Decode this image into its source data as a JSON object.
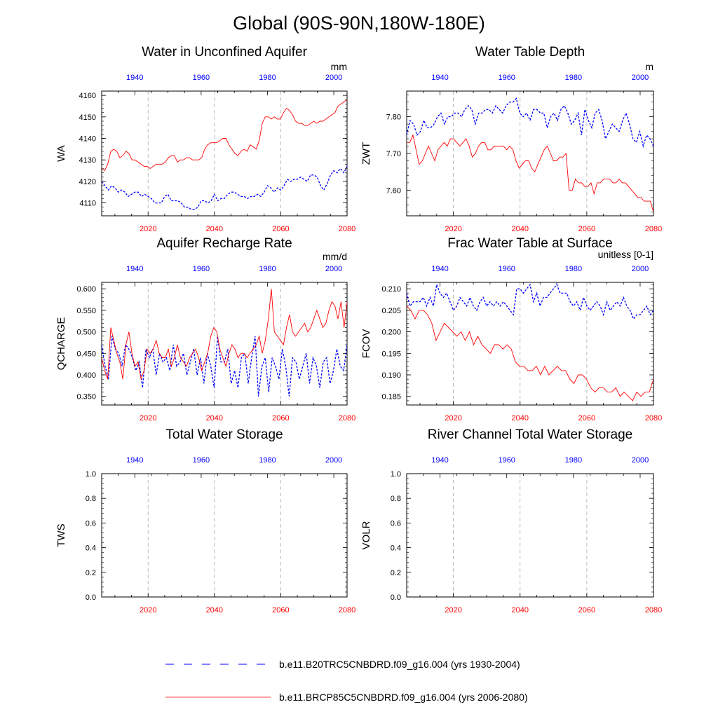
{
  "page_title": "Global (90S-90N,180W-180E)",
  "colors": {
    "historical": "#0000ff",
    "future": "#ff0000",
    "axis": "#000000",
    "gridline": "#aaaaaa"
  },
  "legend": {
    "historical_label": "b.e11.B20TRC5CNBDRD.f09_g16.004 (yrs 1930-2004)",
    "future_label": "b.e11.BRCP85C5CNBDRD.f09_g16.004 (yrs 2006-2080)"
  },
  "chart_data": [
    {
      "type": "line",
      "title": "Water in Unconfined Aquifer",
      "ylabel": "WA",
      "units": "mm",
      "ylim": [
        4104,
        4162
      ],
      "yticks": [
        4110,
        4120,
        4130,
        4140,
        4150,
        4160
      ],
      "ytick_labels": [
        "4110",
        "4120",
        "4130",
        "4140",
        "4150",
        "4160"
      ],
      "x_bottom": {
        "range": [
          2006,
          2080
        ],
        "ticks": [
          2020,
          2040,
          2060,
          2080
        ]
      },
      "x_top": {
        "range": [
          1930,
          2004
        ],
        "ticks": [
          1940,
          1960,
          1980,
          2000
        ]
      },
      "grid": "vertical dashed at bottom ticks",
      "series": [
        {
          "name": "b.e11.B20TRC5CNBDRD.f09_g16.004 (yrs 1930-2004)",
          "axis": "top",
          "x_start": 1930,
          "values": [
            4120,
            4118,
            4116,
            4118,
            4117,
            4115,
            4116,
            4115,
            4113,
            4114,
            4115,
            4115,
            4113,
            4114,
            4113,
            4112,
            4110,
            4110,
            4110,
            4113,
            4114,
            4111,
            4111,
            4111,
            4110,
            4108,
            4108,
            4107,
            4107,
            4108,
            4111,
            4111,
            4110,
            4111,
            4114,
            4111,
            4112,
            4112,
            4114,
            4115,
            4115,
            4114,
            4113,
            4113,
            4112,
            4113,
            4113,
            4114,
            4113,
            4115,
            4118,
            4117,
            4115,
            4117,
            4116,
            4118,
            4121,
            4120,
            4121,
            4121,
            4122,
            4121,
            4120,
            4123,
            4123,
            4122,
            4118,
            4116,
            4119,
            4123,
            4125,
            4124,
            4126,
            4124,
            4127
          ]
        },
        {
          "name": "b.e11.BRCP85C5CNBDRD.f09_g16.004 (yrs 2006-2080)",
          "axis": "bottom",
          "x_start": 2006,
          "values": [
            4126,
            4125,
            4128,
            4134,
            4135,
            4134,
            4131,
            4132,
            4134,
            4133,
            4130,
            4130,
            4129,
            4128,
            4127,
            4127,
            4126,
            4127,
            4128,
            4128,
            4128,
            4129,
            4131,
            4132,
            4132,
            4129,
            4130,
            4130,
            4131,
            4131,
            4130,
            4130,
            4130,
            4131,
            4135,
            4137,
            4138,
            4138,
            4138,
            4139,
            4140,
            4140,
            4137,
            4135,
            4133,
            4132,
            4134,
            4135,
            4134,
            4137,
            4136,
            4135,
            4139,
            4147,
            4150,
            4150,
            4149,
            4150,
            4149,
            4149,
            4152,
            4154,
            4153,
            4151,
            4148,
            4147,
            4147,
            4146,
            4146,
            4147,
            4148,
            4147,
            4148,
            4148,
            4149,
            4150,
            4151,
            4152,
            4155,
            4156,
            4157,
            4158
          ]
        }
      ]
    },
    {
      "type": "line",
      "title": "Water Table Depth",
      "ylabel": "ZWT",
      "units": "m",
      "ylim": [
        7.53,
        7.87
      ],
      "yticks": [
        7.6,
        7.7,
        7.8
      ],
      "ytick_labels": [
        "7.60",
        "7.70",
        "7.80"
      ],
      "x_bottom": {
        "range": [
          2006,
          2080
        ],
        "ticks": [
          2020,
          2040,
          2060,
          2080
        ]
      },
      "x_top": {
        "range": [
          1930,
          2004
        ],
        "ticks": [
          1940,
          1960,
          1980,
          2000
        ]
      },
      "grid": "vertical dashed at bottom ticks",
      "series": [
        {
          "name": "b.e11.B20TRC5CNBDRD.f09_g16.004 (yrs 1930-2004)",
          "axis": "top",
          "x_start": 1930,
          "values": [
            7.75,
            7.79,
            7.78,
            7.75,
            7.76,
            7.79,
            7.77,
            7.77,
            7.78,
            7.8,
            7.81,
            7.78,
            7.8,
            7.8,
            7.81,
            7.81,
            7.8,
            7.82,
            7.83,
            7.82,
            7.78,
            7.81,
            7.81,
            7.82,
            7.82,
            7.81,
            7.83,
            7.82,
            7.81,
            7.83,
            7.84,
            7.84,
            7.85,
            7.81,
            7.8,
            7.81,
            7.79,
            7.82,
            7.82,
            7.81,
            7.81,
            7.77,
            7.8,
            7.81,
            7.79,
            7.82,
            7.83,
            7.81,
            7.78,
            7.79,
            7.81,
            7.75,
            7.82,
            7.79,
            7.77,
            7.81,
            7.82,
            7.79,
            7.74,
            7.76,
            7.78,
            7.77,
            7.76,
            7.79,
            7.81,
            7.78,
            7.74,
            7.73,
            7.76,
            7.72,
            7.75,
            7.74,
            7.72
          ]
        },
        {
          "name": "b.e11.BRCP85C5CNBDRD.f09_g16.004 (yrs 2006-2080)",
          "axis": "bottom",
          "x_start": 2006,
          "values": [
            7.73,
            7.73,
            7.75,
            7.71,
            7.67,
            7.68,
            7.7,
            7.72,
            7.7,
            7.68,
            7.71,
            7.72,
            7.73,
            7.72,
            7.74,
            7.74,
            7.73,
            7.72,
            7.73,
            7.74,
            7.72,
            7.69,
            7.7,
            7.72,
            7.73,
            7.73,
            7.71,
            7.71,
            7.72,
            7.72,
            7.72,
            7.72,
            7.71,
            7.72,
            7.71,
            7.68,
            7.66,
            7.67,
            7.68,
            7.68,
            7.66,
            7.65,
            7.67,
            7.69,
            7.71,
            7.72,
            7.7,
            7.68,
            7.68,
            7.69,
            7.69,
            7.7,
            7.6,
            7.6,
            7.63,
            7.62,
            7.62,
            7.61,
            7.61,
            7.62,
            7.59,
            7.62,
            7.62,
            7.63,
            7.63,
            7.63,
            7.62,
            7.62,
            7.63,
            7.62,
            7.62,
            7.61,
            7.6,
            7.59,
            7.58,
            7.58,
            7.57,
            7.57,
            7.57,
            7.54
          ]
        }
      ]
    },
    {
      "type": "line",
      "title": "Aquifer Recharge Rate",
      "ylabel": "QCHARGE",
      "units": "mm/d",
      "ylim": [
        0.33,
        0.615
      ],
      "yticks": [
        0.35,
        0.4,
        0.45,
        0.5,
        0.55,
        0.6
      ],
      "ytick_labels": [
        "0.350",
        "0.400",
        "0.450",
        "0.500",
        "0.550",
        "0.600"
      ],
      "x_bottom": {
        "range": [
          2006,
          2080
        ],
        "ticks": [
          2020,
          2040,
          2060,
          2080
        ]
      },
      "x_top": {
        "range": [
          1930,
          2004
        ],
        "ticks": [
          1940,
          1960,
          1980,
          2000
        ]
      },
      "grid": "vertical dashed at bottom ticks",
      "series": [
        {
          "name": "b.e11.B20TRC5CNBDRD.f09_g16.004 (yrs 1930-2004)",
          "axis": "top",
          "x_start": 1930,
          "values": [
            0.47,
            0.42,
            0.39,
            0.49,
            0.46,
            0.45,
            0.42,
            0.47,
            0.46,
            0.44,
            0.41,
            0.43,
            0.37,
            0.46,
            0.44,
            0.46,
            0.4,
            0.45,
            0.43,
            0.44,
            0.41,
            0.47,
            0.42,
            0.43,
            0.45,
            0.4,
            0.43,
            0.46,
            0.4,
            0.44,
            0.38,
            0.45,
            0.42,
            0.37,
            0.49,
            0.43,
            0.43,
            0.46,
            0.38,
            0.41,
            0.37,
            0.44,
            0.45,
            0.38,
            0.44,
            0.49,
            0.35,
            0.42,
            0.44,
            0.36,
            0.44,
            0.42,
            0.39,
            0.46,
            0.42,
            0.35,
            0.44,
            0.43,
            0.39,
            0.42,
            0.45,
            0.38,
            0.44,
            0.42,
            0.37,
            0.43,
            0.44,
            0.38,
            0.41,
            0.46,
            0.42,
            0.41,
            0.47
          ]
        },
        {
          "name": "b.e11.BRCP85C5CNBDRD.f09_g16.004 (yrs 2006-2080)",
          "axis": "bottom",
          "x_start": 2006,
          "values": [
            0.44,
            0.41,
            0.39,
            0.51,
            0.48,
            0.45,
            0.43,
            0.39,
            0.47,
            0.5,
            0.45,
            0.42,
            0.43,
            0.39,
            0.41,
            0.46,
            0.45,
            0.46,
            0.48,
            0.45,
            0.44,
            0.44,
            0.46,
            0.42,
            0.44,
            0.47,
            0.44,
            0.43,
            0.42,
            0.44,
            0.45,
            0.46,
            0.44,
            0.41,
            0.43,
            0.45,
            0.49,
            0.51,
            0.5,
            0.46,
            0.44,
            0.42,
            0.45,
            0.47,
            0.46,
            0.44,
            0.45,
            0.45,
            0.44,
            0.45,
            0.46,
            0.47,
            0.49,
            0.45,
            0.48,
            0.53,
            0.6,
            0.5,
            0.49,
            0.48,
            0.47,
            0.51,
            0.54,
            0.5,
            0.49,
            0.5,
            0.51,
            0.52,
            0.5,
            0.51,
            0.53,
            0.55,
            0.53,
            0.51,
            0.52,
            0.55,
            0.57,
            0.56,
            0.53,
            0.57,
            0.51,
            0.57
          ]
        }
      ]
    },
    {
      "type": "line",
      "title": "Frac Water Table at Surface",
      "ylabel": "FCOV",
      "units": "unitless [0-1]",
      "ylim": [
        0.183,
        0.2115
      ],
      "yticks": [
        0.185,
        0.19,
        0.195,
        0.2,
        0.205,
        0.21
      ],
      "ytick_labels": [
        "0.185",
        "0.190",
        "0.195",
        "0.200",
        "0.205",
        "0.210"
      ],
      "x_bottom": {
        "range": [
          2006,
          2080
        ],
        "ticks": [
          2020,
          2040,
          2060,
          2080
        ]
      },
      "x_top": {
        "range": [
          1930,
          2004
        ],
        "ticks": [
          1940,
          1960,
          1980,
          2000
        ]
      },
      "grid": "vertical dashed at bottom ticks",
      "series": [
        {
          "name": "b.e11.B20TRC5CNBDRD.f09_g16.004 (yrs 1930-2004)",
          "axis": "top",
          "x_start": 1930,
          "values": [
            0.209,
            0.206,
            0.207,
            0.207,
            0.207,
            0.208,
            0.206,
            0.208,
            0.206,
            0.211,
            0.209,
            0.208,
            0.209,
            0.207,
            0.205,
            0.206,
            0.208,
            0.207,
            0.206,
            0.208,
            0.206,
            0.205,
            0.207,
            0.208,
            0.206,
            0.207,
            0.206,
            0.207,
            0.206,
            0.207,
            0.206,
            0.205,
            0.204,
            0.21,
            0.21,
            0.209,
            0.21,
            0.211,
            0.207,
            0.209,
            0.206,
            0.208,
            0.208,
            0.209,
            0.21,
            0.211,
            0.209,
            0.209,
            0.209,
            0.207,
            0.206,
            0.207,
            0.205,
            0.208,
            0.206,
            0.205,
            0.206,
            0.207,
            0.206,
            0.204,
            0.207,
            0.205,
            0.206,
            0.207,
            0.206,
            0.208,
            0.206,
            0.205,
            0.203,
            0.204,
            0.204,
            0.205,
            0.206,
            0.204,
            0.205
          ]
        },
        {
          "name": "b.e11.BRCP85C5CNBDRD.f09_g16.004 (yrs 2006-2080)",
          "axis": "bottom",
          "x_start": 2006,
          "values": [
            0.206,
            0.205,
            0.203,
            0.205,
            0.205,
            0.204,
            0.202,
            0.198,
            0.2,
            0.202,
            0.201,
            0.2,
            0.199,
            0.2,
            0.198,
            0.2,
            0.197,
            0.199,
            0.197,
            0.196,
            0.195,
            0.197,
            0.197,
            0.196,
            0.197,
            0.196,
            0.193,
            0.192,
            0.192,
            0.191,
            0.191,
            0.192,
            0.19,
            0.192,
            0.19,
            0.191,
            0.192,
            0.191,
            0.191,
            0.189,
            0.188,
            0.19,
            0.19,
            0.189,
            0.187,
            0.186,
            0.187,
            0.187,
            0.186,
            0.186,
            0.187,
            0.185,
            0.186,
            0.185,
            0.184,
            0.186,
            0.185,
            0.186,
            0.186,
            0.189
          ]
        }
      ]
    },
    {
      "type": "line",
      "title": "Total Water Storage",
      "ylabel": "TWS",
      "units": "",
      "ylim": [
        0,
        1
      ],
      "yticks": [
        0,
        0.2,
        0.4,
        0.6,
        0.8,
        1.0
      ],
      "ytick_labels": [
        "0.0",
        "0.2",
        "0.4",
        "0.6",
        "0.8",
        "1.0"
      ],
      "x_bottom": {
        "range": [
          2006,
          2080
        ],
        "ticks": [
          2020,
          2040,
          2060,
          2080
        ]
      },
      "x_top": {
        "range": [
          1930,
          2004
        ],
        "ticks": [
          1940,
          1960,
          1980,
          2000
        ]
      },
      "grid": "vertical dashed at bottom ticks",
      "series": []
    },
    {
      "type": "line",
      "title": "River Channel Total Water Storage",
      "ylabel": "VOLR",
      "units": "",
      "ylim": [
        0,
        1
      ],
      "yticks": [
        0,
        0.2,
        0.4,
        0.6,
        0.8,
        1.0
      ],
      "ytick_labels": [
        "0.0",
        "0.2",
        "0.4",
        "0.6",
        "0.8",
        "1.0"
      ],
      "x_bottom": {
        "range": [
          2006,
          2080
        ],
        "ticks": [
          2020,
          2040,
          2060,
          2080
        ]
      },
      "x_top": {
        "range": [
          1930,
          2004
        ],
        "ticks": [
          1940,
          1960,
          1980,
          2000
        ]
      },
      "grid": "vertical dashed at bottom ticks",
      "series": []
    }
  ]
}
